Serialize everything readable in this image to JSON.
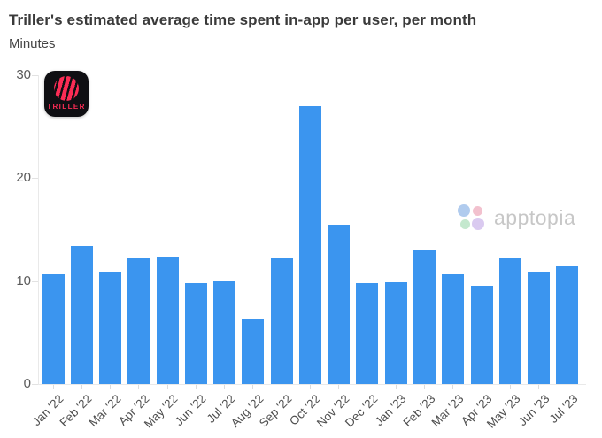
{
  "header": {
    "title": "Triller's estimated average time spent in-app per user, per month",
    "subtitle": "Minutes"
  },
  "branding": {
    "triller": {
      "label": "TRILLER",
      "accent_color": "#fb2c55",
      "bg_color": "#0f0f13"
    },
    "watermark": {
      "text": "apptopia",
      "petal_colors": [
        "#b0cbee",
        "#f2c1ce",
        "#c4e8ce",
        "#dacaf0"
      ]
    }
  },
  "chart_data": {
    "type": "bar",
    "title": "Triller's estimated average time spent in-app per user, per month",
    "xlabel": "",
    "ylabel": "Minutes",
    "ylim": [
      0,
      30
    ],
    "yticks": [
      0,
      10,
      20,
      30
    ],
    "grid": false,
    "legend": false,
    "bar_color": "#3b95ef",
    "categories": [
      "Jan '22",
      "Feb '22",
      "Mar '22",
      "Apr '22",
      "May '22",
      "Jun '22",
      "Jul '22",
      "Aug '22",
      "Sep '22",
      "Oct '22",
      "Nov '22",
      "Dec '22",
      "Jan '23",
      "Feb '23",
      "Mar '23",
      "Apr '23",
      "May '23",
      "Jun '23",
      "Jul '23"
    ],
    "values": [
      10.7,
      13.4,
      10.9,
      12.2,
      12.4,
      9.8,
      10.0,
      6.4,
      12.2,
      27.0,
      15.5,
      9.8,
      9.9,
      13.0,
      10.7,
      9.5,
      12.2,
      10.9,
      11.4
    ]
  }
}
